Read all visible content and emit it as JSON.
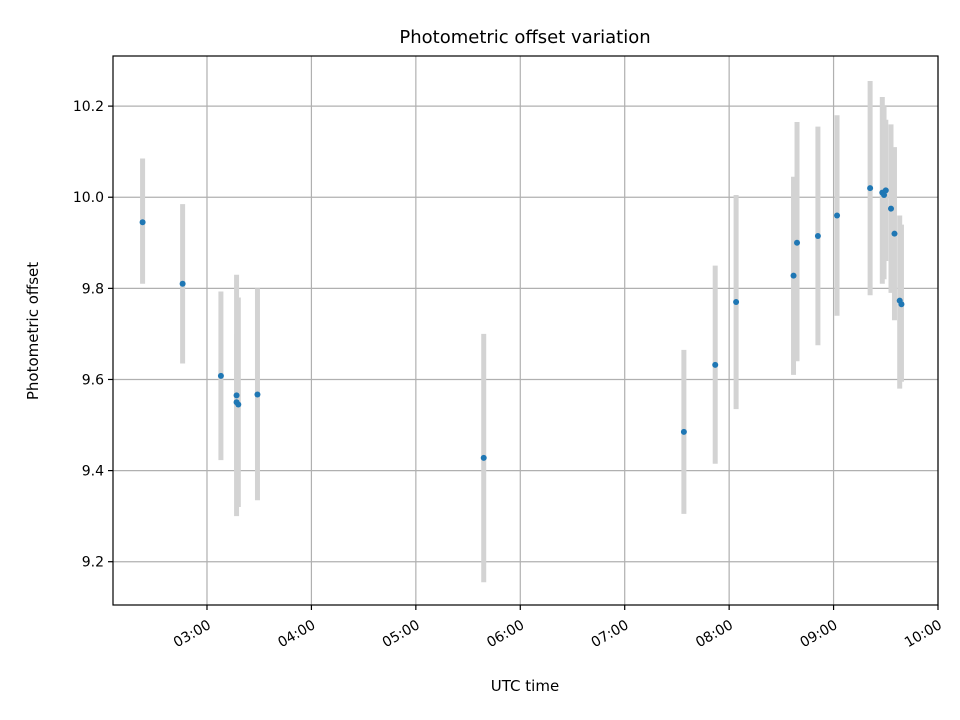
{
  "chart_data": {
    "type": "scatter",
    "title": "Photometric offset variation",
    "xlabel": "UTC time",
    "ylabel": "Photometric offset",
    "x_type": "time",
    "xlim": [
      "02:06",
      "10:00"
    ],
    "ylim": [
      9.105,
      10.31
    ],
    "x_ticks": [
      "03:00",
      "04:00",
      "05:00",
      "06:00",
      "07:00",
      "08:00",
      "09:00",
      "10:00"
    ],
    "y_ticks": [
      9.2,
      9.4,
      9.6,
      9.8,
      10.0,
      10.2
    ],
    "y_tick_labels": [
      "9.2",
      "9.4",
      "9.6",
      "9.8",
      "10.0",
      "10.2"
    ],
    "grid": true,
    "colors": {
      "marker": "#1f77b4",
      "errorbar": "#d3d3d3",
      "grid": "#b0b0b0"
    },
    "series": [
      {
        "points": [
          {
            "x": "02:23",
            "y": 9.945,
            "ylow": 9.81,
            "yhigh": 10.085
          },
          {
            "x": "02:46",
            "y": 9.81,
            "ylow": 9.635,
            "yhigh": 9.985
          },
          {
            "x": "03:08",
            "y": 9.608,
            "ylow": 9.423,
            "yhigh": 9.793
          },
          {
            "x": "03:17",
            "y": 9.565,
            "ylow": 9.3,
            "yhigh": 9.83
          },
          {
            "x": "03:17",
            "y": 9.55,
            "ylow": 9.4,
            "yhigh": 9.7
          },
          {
            "x": "03:18",
            "y": 9.545,
            "ylow": 9.32,
            "yhigh": 9.78
          },
          {
            "x": "03:29",
            "y": 9.567,
            "ylow": 9.335,
            "yhigh": 9.8
          },
          {
            "x": "05:39",
            "y": 9.428,
            "ylow": 9.155,
            "yhigh": 9.7
          },
          {
            "x": "07:34",
            "y": 9.485,
            "ylow": 9.305,
            "yhigh": 9.665
          },
          {
            "x": "07:52",
            "y": 9.632,
            "ylow": 9.415,
            "yhigh": 9.85
          },
          {
            "x": "08:04",
            "y": 9.77,
            "ylow": 9.535,
            "yhigh": 10.005
          },
          {
            "x": "08:37",
            "y": 9.828,
            "ylow": 9.61,
            "yhigh": 10.045
          },
          {
            "x": "08:39",
            "y": 9.9,
            "ylow": 9.64,
            "yhigh": 10.165
          },
          {
            "x": "08:51",
            "y": 9.915,
            "ylow": 9.675,
            "yhigh": 10.155
          },
          {
            "x": "09:02",
            "y": 9.96,
            "ylow": 9.74,
            "yhigh": 10.18
          },
          {
            "x": "09:21",
            "y": 10.02,
            "ylow": 9.785,
            "yhigh": 10.255
          },
          {
            "x": "09:28",
            "y": 10.01,
            "ylow": 9.81,
            "yhigh": 10.22
          },
          {
            "x": "09:29",
            "y": 10.005,
            "ylow": 9.82,
            "yhigh": 10.2
          },
          {
            "x": "09:30",
            "y": 10.015,
            "ylow": 9.86,
            "yhigh": 10.17
          },
          {
            "x": "09:33",
            "y": 9.975,
            "ylow": 9.79,
            "yhigh": 10.16
          },
          {
            "x": "09:35",
            "y": 9.92,
            "ylow": 9.73,
            "yhigh": 10.11
          },
          {
            "x": "09:38",
            "y": 9.773,
            "ylow": 9.58,
            "yhigh": 9.96
          },
          {
            "x": "09:39",
            "y": 9.765,
            "ylow": 9.595,
            "yhigh": 9.94
          }
        ]
      }
    ]
  }
}
